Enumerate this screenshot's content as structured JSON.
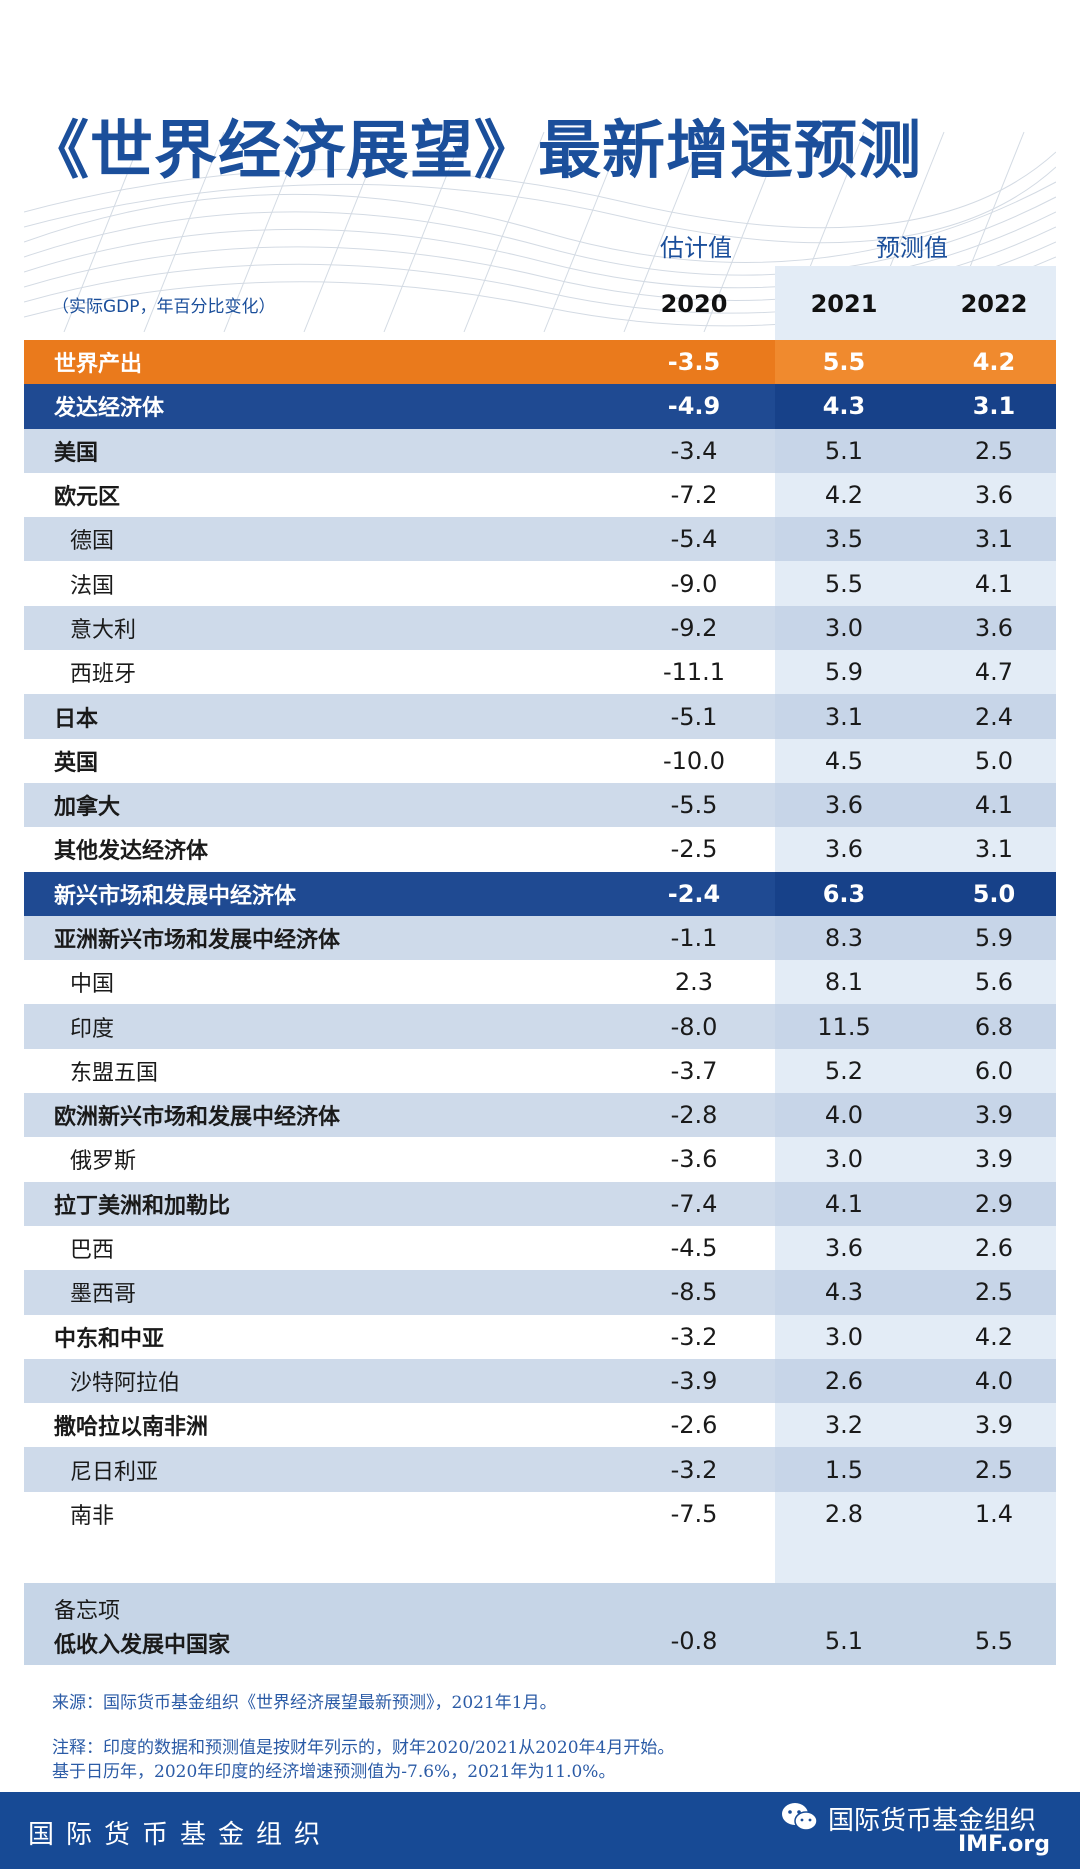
{
  "title": "《世界经济展望》最新增速预测",
  "headers": {
    "estimate": "估计值",
    "projection": "预测值",
    "unit_note": "（实际GDP，年百分比变化）",
    "years": [
      "2020",
      "2021",
      "2022"
    ]
  },
  "rows": [
    {
      "label": "世界产出",
      "values": [
        "-3.5",
        "5.5",
        "4.2"
      ],
      "style": "orange",
      "indent": false,
      "bold": true
    },
    {
      "label": "发达经济体",
      "values": [
        "-4.9",
        "4.3",
        "3.1"
      ],
      "style": "blue",
      "indent": false,
      "bold": true
    },
    {
      "label": "美国",
      "values": [
        "-3.4",
        "5.1",
        "2.5"
      ],
      "style": "shade",
      "indent": false,
      "bold": true
    },
    {
      "label": "欧元区",
      "values": [
        "-7.2",
        "4.2",
        "3.6"
      ],
      "style": "plain",
      "indent": false,
      "bold": true
    },
    {
      "label": "德国",
      "values": [
        "-5.4",
        "3.5",
        "3.1"
      ],
      "style": "shade",
      "indent": true,
      "bold": false
    },
    {
      "label": "法国",
      "values": [
        "-9.0",
        "5.5",
        "4.1"
      ],
      "style": "plain",
      "indent": true,
      "bold": false
    },
    {
      "label": "意大利",
      "values": [
        "-9.2",
        "3.0",
        "3.6"
      ],
      "style": "shade",
      "indent": true,
      "bold": false
    },
    {
      "label": "西班牙",
      "values": [
        "-11.1",
        "5.9",
        "4.7"
      ],
      "style": "plain",
      "indent": true,
      "bold": false
    },
    {
      "label": "日本",
      "values": [
        "-5.1",
        "3.1",
        "2.4"
      ],
      "style": "shade",
      "indent": false,
      "bold": true
    },
    {
      "label": "英国",
      "values": [
        "-10.0",
        "4.5",
        "5.0"
      ],
      "style": "plain",
      "indent": false,
      "bold": true
    },
    {
      "label": "加拿大",
      "values": [
        "-5.5",
        "3.6",
        "4.1"
      ],
      "style": "shade",
      "indent": false,
      "bold": true
    },
    {
      "label": "其他发达经济体",
      "values": [
        "-2.5",
        "3.6",
        "3.1"
      ],
      "style": "plain",
      "indent": false,
      "bold": true
    },
    {
      "label": "新兴市场和发展中经济体",
      "values": [
        "-2.4",
        "6.3",
        "5.0"
      ],
      "style": "blue",
      "indent": false,
      "bold": true
    },
    {
      "label": "亚洲新兴市场和发展中经济体",
      "values": [
        "-1.1",
        "8.3",
        "5.9"
      ],
      "style": "shade",
      "indent": false,
      "bold": true
    },
    {
      "label": "中国",
      "values": [
        "2.3",
        "8.1",
        "5.6"
      ],
      "style": "plain",
      "indent": true,
      "bold": false
    },
    {
      "label": "印度",
      "values": [
        "-8.0",
        "11.5",
        "6.8"
      ],
      "style": "shade",
      "indent": true,
      "bold": false
    },
    {
      "label": "东盟五国",
      "values": [
        "-3.7",
        "5.2",
        "6.0"
      ],
      "style": "plain",
      "indent": true,
      "bold": false
    },
    {
      "label": "欧洲新兴市场和发展中经济体",
      "values": [
        "-2.8",
        "4.0",
        "3.9"
      ],
      "style": "shade",
      "indent": false,
      "bold": true
    },
    {
      "label": "俄罗斯",
      "values": [
        "-3.6",
        "3.0",
        "3.9"
      ],
      "style": "plain",
      "indent": true,
      "bold": false
    },
    {
      "label": "拉丁美洲和加勒比",
      "values": [
        "-7.4",
        "4.1",
        "2.9"
      ],
      "style": "shade",
      "indent": false,
      "bold": true
    },
    {
      "label": "巴西",
      "values": [
        "-4.5",
        "3.6",
        "2.6"
      ],
      "style": "plain",
      "indent": true,
      "bold": false
    },
    {
      "label": "墨西哥",
      "values": [
        "-8.5",
        "4.3",
        "2.5"
      ],
      "style": "shade",
      "indent": true,
      "bold": false
    },
    {
      "label": "中东和中亚",
      "values": [
        "-3.2",
        "3.0",
        "4.2"
      ],
      "style": "plain",
      "indent": false,
      "bold": true
    },
    {
      "label": "沙特阿拉伯",
      "values": [
        "-3.9",
        "2.6",
        "4.0"
      ],
      "style": "shade",
      "indent": true,
      "bold": false
    },
    {
      "label": "撒哈拉以南非洲",
      "values": [
        "-2.6",
        "3.2",
        "3.9"
      ],
      "style": "plain",
      "indent": false,
      "bold": true
    },
    {
      "label": "尼日利亚",
      "values": [
        "-3.2",
        "1.5",
        "2.5"
      ],
      "style": "shade",
      "indent": true,
      "bold": false
    },
    {
      "label": "南非",
      "values": [
        "-7.5",
        "2.8",
        "1.4"
      ],
      "style": "plain",
      "indent": true,
      "bold": false
    }
  ],
  "memo": {
    "heading": "备忘项",
    "label": "低收入发展中国家",
    "values": [
      "-0.8",
      "5.1",
      "5.5"
    ]
  },
  "source": "来源：国际货币基金组织《世界经济展望最新预测》，2021年1月。",
  "note_line1": "注释：印度的数据和预测值是按财年列示的，财年2020/2021从2020年4月开始。",
  "note_line2": "基于日历年，2020年印度的经济增速预测值为-7.6%，2021年为11.0%。",
  "footer": {
    "org_name": "国际货币基金组织",
    "wechat_name": "国际货币基金组织",
    "site": "IMF.org"
  },
  "colors": {
    "title_blue": "#1b4f9b",
    "orange": "#ea7a1c",
    "navy": "#1f4a92",
    "footer": "#174a95"
  }
}
